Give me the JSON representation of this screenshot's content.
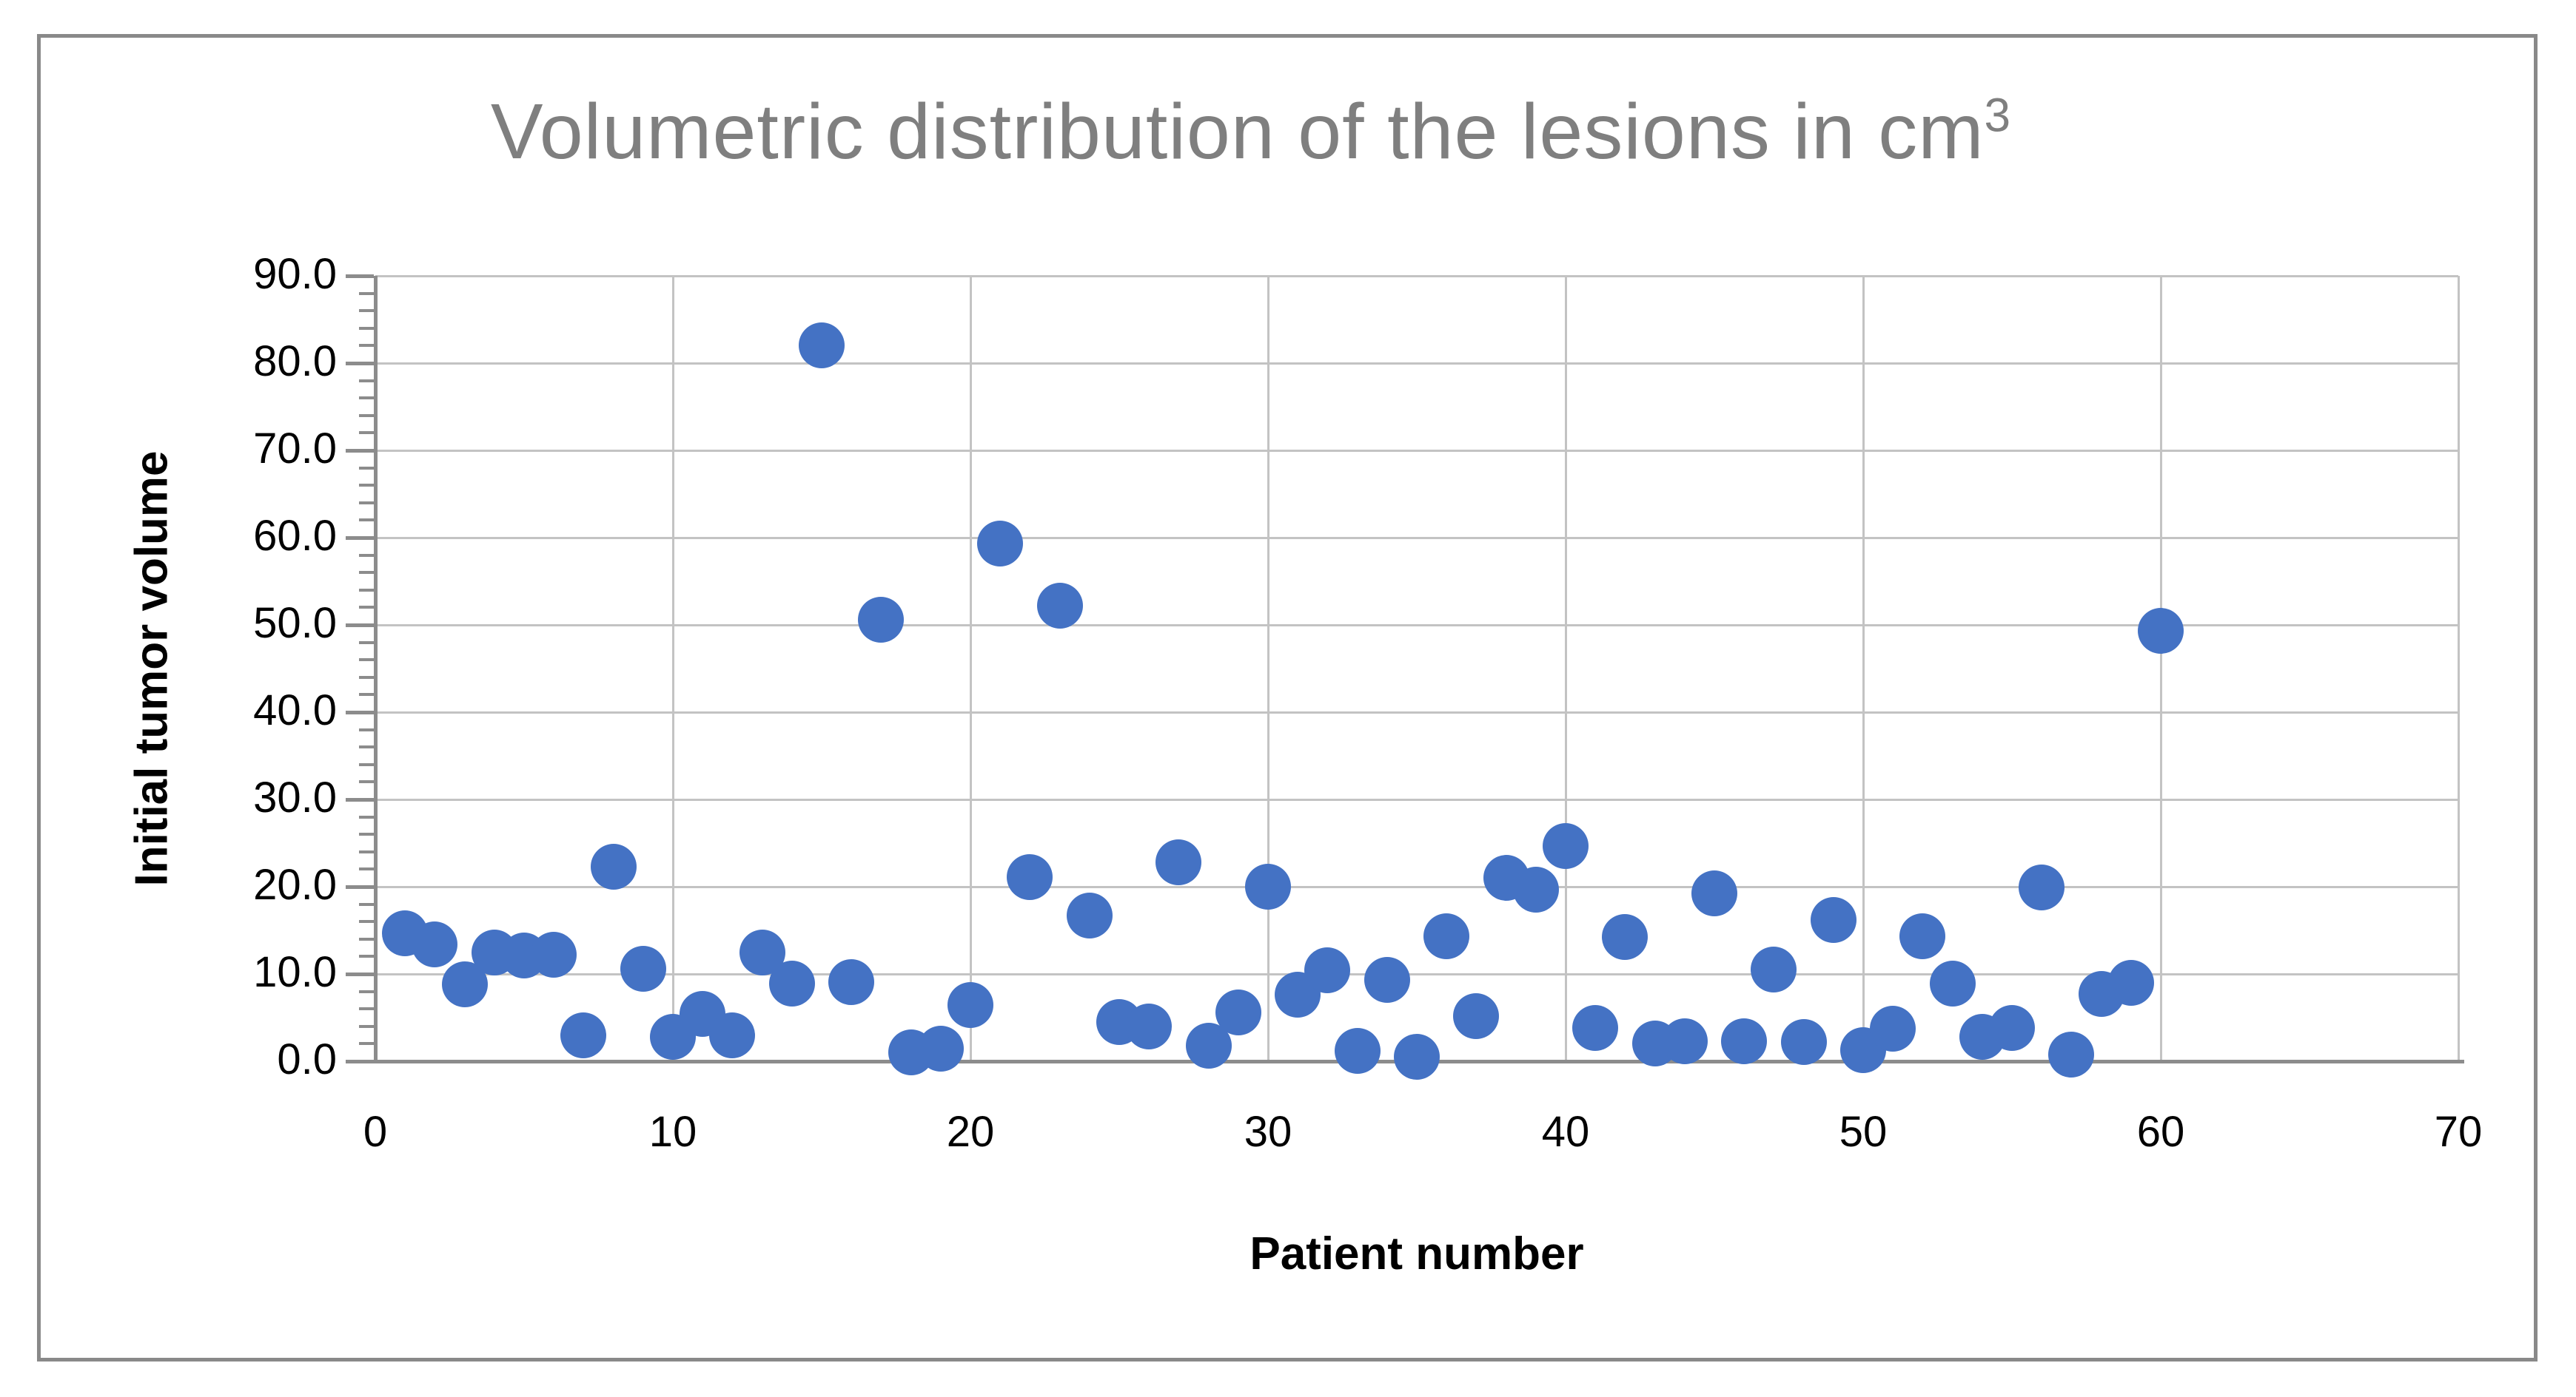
{
  "figure": {
    "title_main": "Volumetric distribution of the lesions in cm",
    "title_superscript": "3"
  },
  "colors": {
    "marker": "#4472C4",
    "gridline": "#C3C3C3",
    "axis_line": "#8C8C8C",
    "title_text": "#7F7F7F",
    "figure_border": "#898989",
    "tick_text": "#000000"
  },
  "chart_data": {
    "type": "scatter",
    "title": "Volumetric distribution of the lesions in cm³",
    "xlabel": "Patient number",
    "ylabel": "Initial tumor volume",
    "xlim": [
      0,
      70
    ],
    "ylim": [
      0,
      90
    ],
    "x_tick_step": 10,
    "y_tick_step": 10,
    "y_minor_tick_step": 2,
    "x_tick_labels": [
      "0",
      "10",
      "20",
      "30",
      "40",
      "50",
      "60",
      "70"
    ],
    "y_tick_labels": [
      "0.0",
      "10.0",
      "20.0",
      "30.0",
      "40.0",
      "50.0",
      "60.0",
      "70.0",
      "80.0",
      "90.0"
    ],
    "grid": true,
    "legend": false,
    "series": [
      {
        "name": "Initial tumor volume",
        "x": [
          1,
          2,
          3,
          4,
          5,
          6,
          7,
          8,
          9,
          10,
          11,
          12,
          13,
          14,
          15,
          16,
          17,
          18,
          19,
          20,
          21,
          22,
          23,
          24,
          25,
          26,
          27,
          28,
          29,
          30,
          31,
          32,
          33,
          34,
          35,
          36,
          37,
          38,
          39,
          40,
          41,
          42,
          43,
          44,
          45,
          46,
          47,
          48,
          49,
          50,
          51,
          52,
          53,
          54,
          55,
          56,
          57,
          58,
          59,
          60
        ],
        "y": [
          14.7,
          13.4,
          8.8,
          12.5,
          12.1,
          12.2,
          3.0,
          22.3,
          10.6,
          2.8,
          5.4,
          3.0,
          12.5,
          8.9,
          82.0,
          9.1,
          50.6,
          1.0,
          1.4,
          6.4,
          59.3,
          21.1,
          52.2,
          16.7,
          4.5,
          4.0,
          22.8,
          1.8,
          5.6,
          20.0,
          7.6,
          10.4,
          1.2,
          9.3,
          0.5,
          14.3,
          5.2,
          21.0,
          19.7,
          24.7,
          3.8,
          14.2,
          2.0,
          2.3,
          19.2,
          2.3,
          10.5,
          2.2,
          16.2,
          1.3,
          3.7,
          14.3,
          8.9,
          2.8,
          3.8,
          19.9,
          0.8,
          7.7,
          9.0,
          49.3
        ]
      }
    ]
  }
}
